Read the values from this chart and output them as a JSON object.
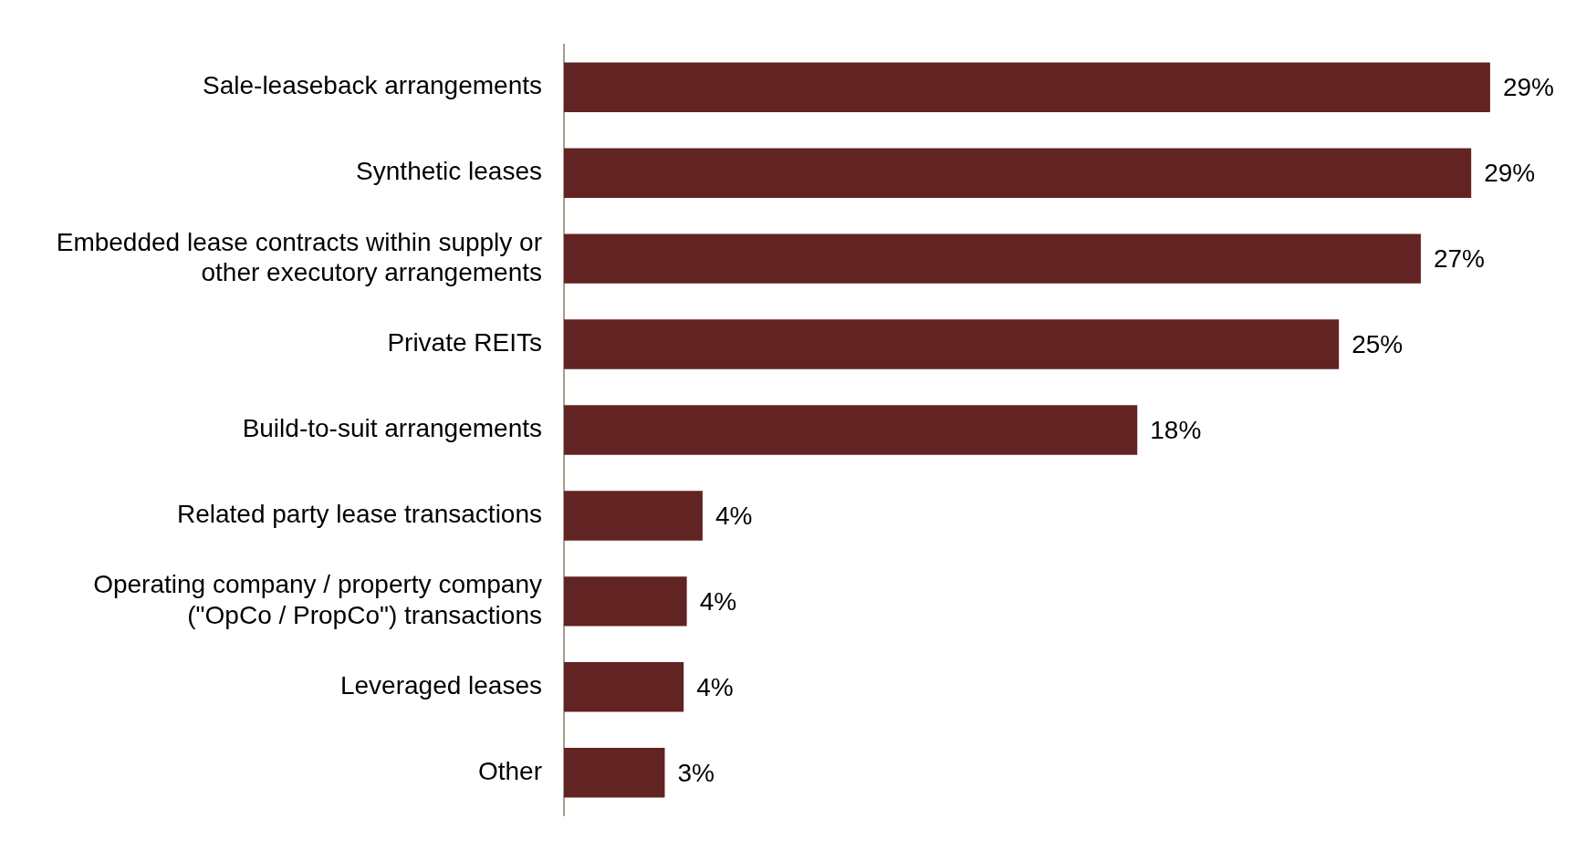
{
  "chart_data": {
    "type": "bar",
    "orientation": "horizontal",
    "categories": [
      "Sale-leaseback arrangements",
      "Synthetic leases",
      "Embedded lease contracts within supply or other executory arrangements",
      "Private REITs",
      "Build-to-suit arrangements",
      "Related party lease transactions",
      "Operating company / property company (\"OpCo / PropCo\") transactions",
      "Leveraged leases",
      "Other"
    ],
    "values": [
      29.4,
      28.8,
      27.2,
      24.6,
      18.2,
      4.4,
      3.9,
      3.8,
      3.2
    ],
    "value_labels": [
      "29%",
      "29%",
      "27%",
      "25%",
      "18%",
      "4%",
      "4%",
      "4%",
      "3%"
    ],
    "color": "#622323",
    "legend": false
  }
}
